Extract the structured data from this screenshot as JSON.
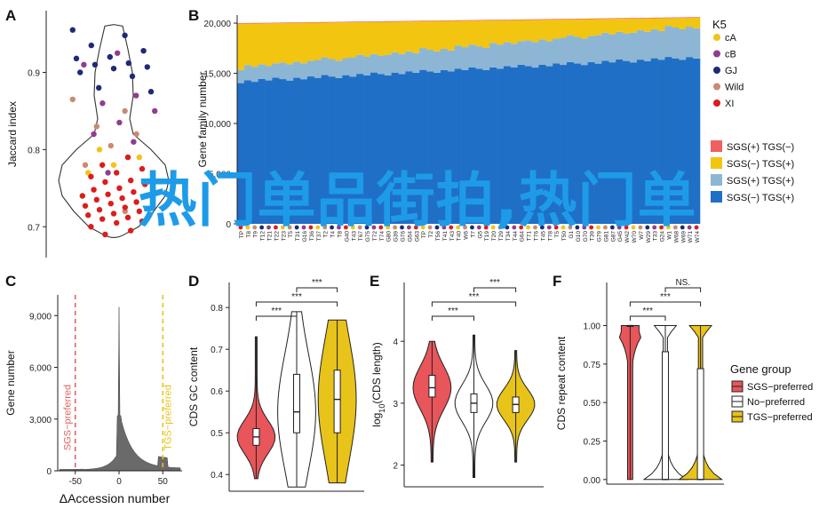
{
  "overlay_text": "热门单品街拍,热门单",
  "chart_data": [
    {
      "panel": "A",
      "type": "scatter",
      "ylabel": "Jaccard index",
      "yticks": [
        0.7,
        0.8,
        0.9
      ],
      "ylim": [
        0.66,
        0.98
      ],
      "colors": {
        "cA": "#f0c419",
        "cB": "#8e3e8e",
        "GJ": "#1e2a78",
        "Wild": "#c98a75",
        "XI": "#dd1c1c"
      },
      "points": [
        {
          "g": "GJ",
          "y": 0.955
        },
        {
          "g": "GJ",
          "y": 0.948
        },
        {
          "g": "GJ",
          "y": 0.935
        },
        {
          "g": "GJ",
          "y": 0.928
        },
        {
          "g": "GJ",
          "y": 0.92
        },
        {
          "g": "GJ",
          "y": 0.918
        },
        {
          "g": "GJ",
          "y": 0.912
        },
        {
          "g": "GJ",
          "y": 0.91
        },
        {
          "g": "GJ",
          "y": 0.907
        },
        {
          "g": "GJ",
          "y": 0.905
        },
        {
          "g": "GJ",
          "y": 0.9
        },
        {
          "g": "GJ",
          "y": 0.895
        },
        {
          "g": "GJ",
          "y": 0.88
        },
        {
          "g": "GJ",
          "y": 0.875
        },
        {
          "g": "cB",
          "y": 0.925
        },
        {
          "g": "cB",
          "y": 0.91
        },
        {
          "g": "cB",
          "y": 0.87
        },
        {
          "g": "cB",
          "y": 0.86
        },
        {
          "g": "cB",
          "y": 0.85
        },
        {
          "g": "cB",
          "y": 0.835
        },
        {
          "g": "cB",
          "y": 0.82
        },
        {
          "g": "cB",
          "y": 0.81
        },
        {
          "g": "cB",
          "y": 0.77
        },
        {
          "g": "Wild",
          "y": 0.865
        },
        {
          "g": "Wild",
          "y": 0.85
        },
        {
          "g": "Wild",
          "y": 0.83
        },
        {
          "g": "Wild",
          "y": 0.82
        },
        {
          "g": "Wild",
          "y": 0.805
        },
        {
          "g": "Wild",
          "y": 0.78
        },
        {
          "g": "Wild",
          "y": 0.72
        },
        {
          "g": "cA",
          "y": 0.8
        },
        {
          "g": "cA",
          "y": 0.79
        },
        {
          "g": "cA",
          "y": 0.78
        },
        {
          "g": "cA",
          "y": 0.77
        },
        {
          "g": "XI",
          "y": 0.79
        },
        {
          "g": "XI",
          "y": 0.78
        },
        {
          "g": "XI",
          "y": 0.775
        },
        {
          "g": "XI",
          "y": 0.77
        },
        {
          "g": "XI",
          "y": 0.765
        },
        {
          "g": "XI",
          "y": 0.76
        },
        {
          "g": "XI",
          "y": 0.758
        },
        {
          "g": "XI",
          "y": 0.755
        },
        {
          "g": "XI",
          "y": 0.75
        },
        {
          "g": "XI",
          "y": 0.748
        },
        {
          "g": "XI",
          "y": 0.745
        },
        {
          "g": "XI",
          "y": 0.742
        },
        {
          "g": "XI",
          "y": 0.74
        },
        {
          "g": "XI",
          "y": 0.737
        },
        {
          "g": "XI",
          "y": 0.735
        },
        {
          "g": "XI",
          "y": 0.732
        },
        {
          "g": "XI",
          "y": 0.73
        },
        {
          "g": "XI",
          "y": 0.727
        },
        {
          "g": "XI",
          "y": 0.725
        },
        {
          "g": "XI",
          "y": 0.722
        },
        {
          "g": "XI",
          "y": 0.72
        },
        {
          "g": "XI",
          "y": 0.717
        },
        {
          "g": "XI",
          "y": 0.715
        },
        {
          "g": "XI",
          "y": 0.712
        },
        {
          "g": "XI",
          "y": 0.71
        },
        {
          "g": "XI",
          "y": 0.707
        },
        {
          "g": "XI",
          "y": 0.705
        },
        {
          "g": "XI",
          "y": 0.7
        },
        {
          "g": "XI",
          "y": 0.695
        },
        {
          "g": "XI",
          "y": 0.69
        }
      ]
    },
    {
      "panel": "B",
      "type": "bar",
      "stacked": true,
      "ylabel": "Gene family number",
      "yticks": [
        0,
        5000,
        10000,
        15000,
        20000
      ],
      "yticklabels": [
        "0",
        "5,000",
        "10,000",
        "15,000",
        "20,000"
      ],
      "ylim": [
        0,
        20800
      ],
      "n_accessions": 66,
      "visible_xticklabels": [
        "TP",
        "T8",
        "T9",
        "T12",
        "T21",
        "T22",
        "T23",
        "T5",
        "T31",
        "G16",
        "T36",
        "T37",
        "T2",
        "T4",
        "T8",
        "G40",
        "T43",
        "T67",
        "G75",
        "T72",
        "T74",
        "G80",
        "G39",
        "G76",
        "G54",
        "G63",
        "TP",
        "T2",
        "T56",
        "T41",
        "T43",
        "T40",
        "W6",
        "T7",
        "G5",
        "T19",
        "T20",
        "T29",
        "T34",
        "T44",
        "G64",
        "T71",
        "T76",
        "T45",
        "T78",
        "T5",
        "T50",
        "G1",
        "G10",
        "G70",
        "T39",
        "G79",
        "G81",
        "G87",
        "G45",
        "W42",
        "W70",
        "W7",
        "W29",
        "T33",
        "G24",
        "W1",
        "W68",
        "W69",
        "W71",
        "W74"
      ],
      "base_start": 14200,
      "base_end": 16600,
      "light_start": 1400,
      "light_end": 3100,
      "total_start": 20000,
      "total_end": 20600,
      "series": [
        {
          "name": "SGS(+) TGS(−)",
          "color": "#f06060"
        },
        {
          "name": "SGS(−) TGS(+)",
          "color": "#f2c511"
        },
        {
          "name": "SGS(+) TGS(+)",
          "color": "#8db6d4"
        },
        {
          "name": "SGS(−) TGS(+)",
          "color": "#1f6fc6"
        }
      ],
      "legend_title": "K5",
      "group_legend": [
        {
          "name": "cA",
          "color": "#f0c419"
        },
        {
          "name": "cB",
          "color": "#8e3e8e"
        },
        {
          "name": "GJ",
          "color": "#1e2a78"
        },
        {
          "name": "Wild",
          "color": "#c98a75"
        },
        {
          "name": "XI",
          "color": "#dd1c1c"
        }
      ]
    },
    {
      "panel": "C",
      "type": "area",
      "ylabel": "Gene number",
      "xlabel": "ΔAccession number",
      "xticks": [
        -50,
        0,
        50
      ],
      "xlim": [
        -70,
        72
      ],
      "yticks": [
        0,
        3000,
        6000,
        9000
      ],
      "yticklabels": [
        "0",
        "3,000",
        "6,000",
        "9,000"
      ],
      "ylim": [
        0,
        10200
      ],
      "vlines": [
        {
          "x": -50,
          "color": "#e36060",
          "label": "SGS−preferred"
        },
        {
          "x": 50,
          "color": "#e8c31a",
          "label": "TGS−preferred"
        }
      ],
      "peak": 9500,
      "fill_color": "#6a6a6a"
    },
    {
      "panel": "D",
      "type": "violin",
      "ylabel": "CDS GC content",
      "yticks": [
        0.4,
        0.5,
        0.6,
        0.7,
        0.8
      ],
      "ylim": [
        0.36,
        0.86
      ],
      "groups": [
        {
          "name": "SGS−preferred",
          "color": "#e8555a",
          "min": 0.39,
          "q1": 0.47,
          "median": 0.49,
          "q3": 0.51,
          "max": 0.73
        },
        {
          "name": "No−preferred",
          "color": "#ffffff",
          "min": 0.37,
          "q1": 0.5,
          "median": 0.55,
          "q3": 0.64,
          "max": 0.79
        },
        {
          "name": "TGS−preferred",
          "color": "#e8c31a",
          "min": 0.38,
          "q1": 0.5,
          "median": 0.58,
          "q3": 0.65,
          "max": 0.77
        }
      ],
      "significance": [
        {
          "from": 0,
          "to": 1,
          "label": "***"
        },
        {
          "from": 0,
          "to": 2,
          "label": "***"
        },
        {
          "from": 1,
          "to": 2,
          "label": "***"
        }
      ]
    },
    {
      "panel": "E",
      "type": "violin",
      "ylabel": "log10(CDS length)",
      "yticks": [
        2,
        3,
        4
      ],
      "ylim": [
        1.65,
        4.95
      ],
      "groups": [
        {
          "name": "SGS−preferred",
          "color": "#e8555a",
          "min": 2.05,
          "q1": 3.1,
          "median": 3.25,
          "q3": 3.45,
          "max": 4.0
        },
        {
          "name": "No−preferred",
          "color": "#ffffff",
          "min": 1.8,
          "q1": 2.85,
          "median": 3.0,
          "q3": 3.15,
          "max": 4.1
        },
        {
          "name": "TGS−preferred",
          "color": "#e8c31a",
          "min": 2.05,
          "q1": 2.85,
          "median": 2.98,
          "q3": 3.1,
          "max": 3.85
        }
      ],
      "significance": [
        {
          "from": 0,
          "to": 1,
          "label": "***"
        },
        {
          "from": 0,
          "to": 2,
          "label": "***"
        },
        {
          "from": 1,
          "to": 2,
          "label": "***"
        }
      ]
    },
    {
      "panel": "F",
      "type": "violin",
      "ylabel": "CDS repeat content",
      "yticks": [
        0,
        0.25,
        0.5,
        0.75,
        1
      ],
      "yticklabels": [
        "0.00",
        "0.25",
        "0.50",
        "0.75",
        "1.00"
      ],
      "ylim": [
        -0.03,
        1.28
      ],
      "groups": [
        {
          "name": "SGS−preferred",
          "color": "#e8555a",
          "min": 0,
          "q1": 1,
          "median": 1,
          "q3": 1,
          "max": 1
        },
        {
          "name": "No−preferred",
          "color": "#ffffff",
          "min": 0,
          "q1": 0,
          "median": 0,
          "q3": 0.83,
          "max": 1
        },
        {
          "name": "TGS−preferred",
          "color": "#e8c31a",
          "min": 0,
          "q1": 0,
          "median": 0,
          "q3": 0.72,
          "max": 1
        }
      ],
      "significance": [
        {
          "from": 0,
          "to": 1,
          "label": "***"
        },
        {
          "from": 0,
          "to": 2,
          "label": "***"
        },
        {
          "from": 1,
          "to": 2,
          "label": "NS."
        }
      ],
      "legend_title": "Gene group"
    }
  ]
}
